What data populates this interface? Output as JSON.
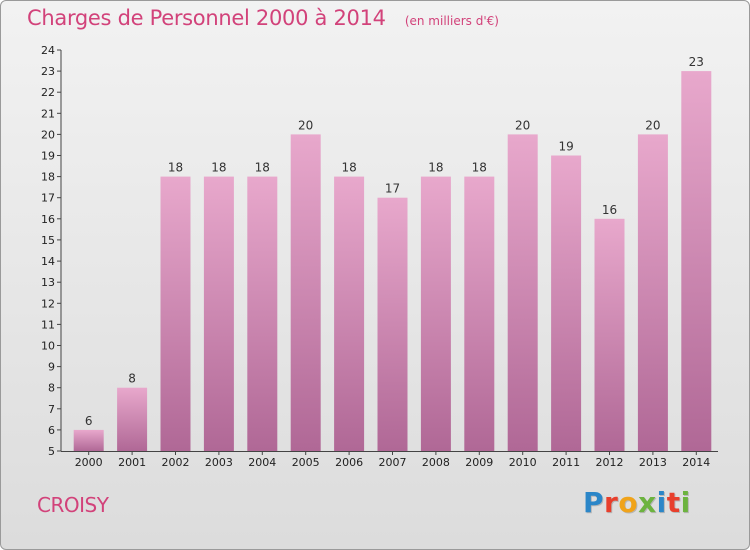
{
  "place": "CROISY",
  "logo": {
    "text": "Proxiti",
    "letter_colors": [
      "#2b86c8",
      "#e83f2c",
      "#f0a31a",
      "#6cb33f",
      "#2b86c8",
      "#e83f2c",
      "#6cb33f"
    ]
  },
  "colors": {
    "accent": "#d2427a",
    "bar_top": "#e8a8cc",
    "bar_bottom": "#b06896"
  },
  "chart_data": {
    "type": "bar",
    "title": "Charges de Personnel 2000 à 2014",
    "subtitle": "(en milliers d'€)",
    "categories": [
      "2000",
      "2001",
      "2002",
      "2003",
      "2004",
      "2005",
      "2006",
      "2007",
      "2008",
      "2009",
      "2010",
      "2011",
      "2012",
      "2013",
      "2014"
    ],
    "values": [
      6,
      8,
      18,
      18,
      18,
      20,
      18,
      17,
      18,
      18,
      20,
      19,
      16,
      20,
      23
    ],
    "ylim": [
      5,
      24
    ],
    "yticks": [
      5,
      6,
      7,
      8,
      9,
      10,
      11,
      12,
      13,
      14,
      15,
      16,
      17,
      18,
      19,
      20,
      21,
      22,
      23,
      24
    ],
    "grid": false,
    "legend": "none"
  }
}
